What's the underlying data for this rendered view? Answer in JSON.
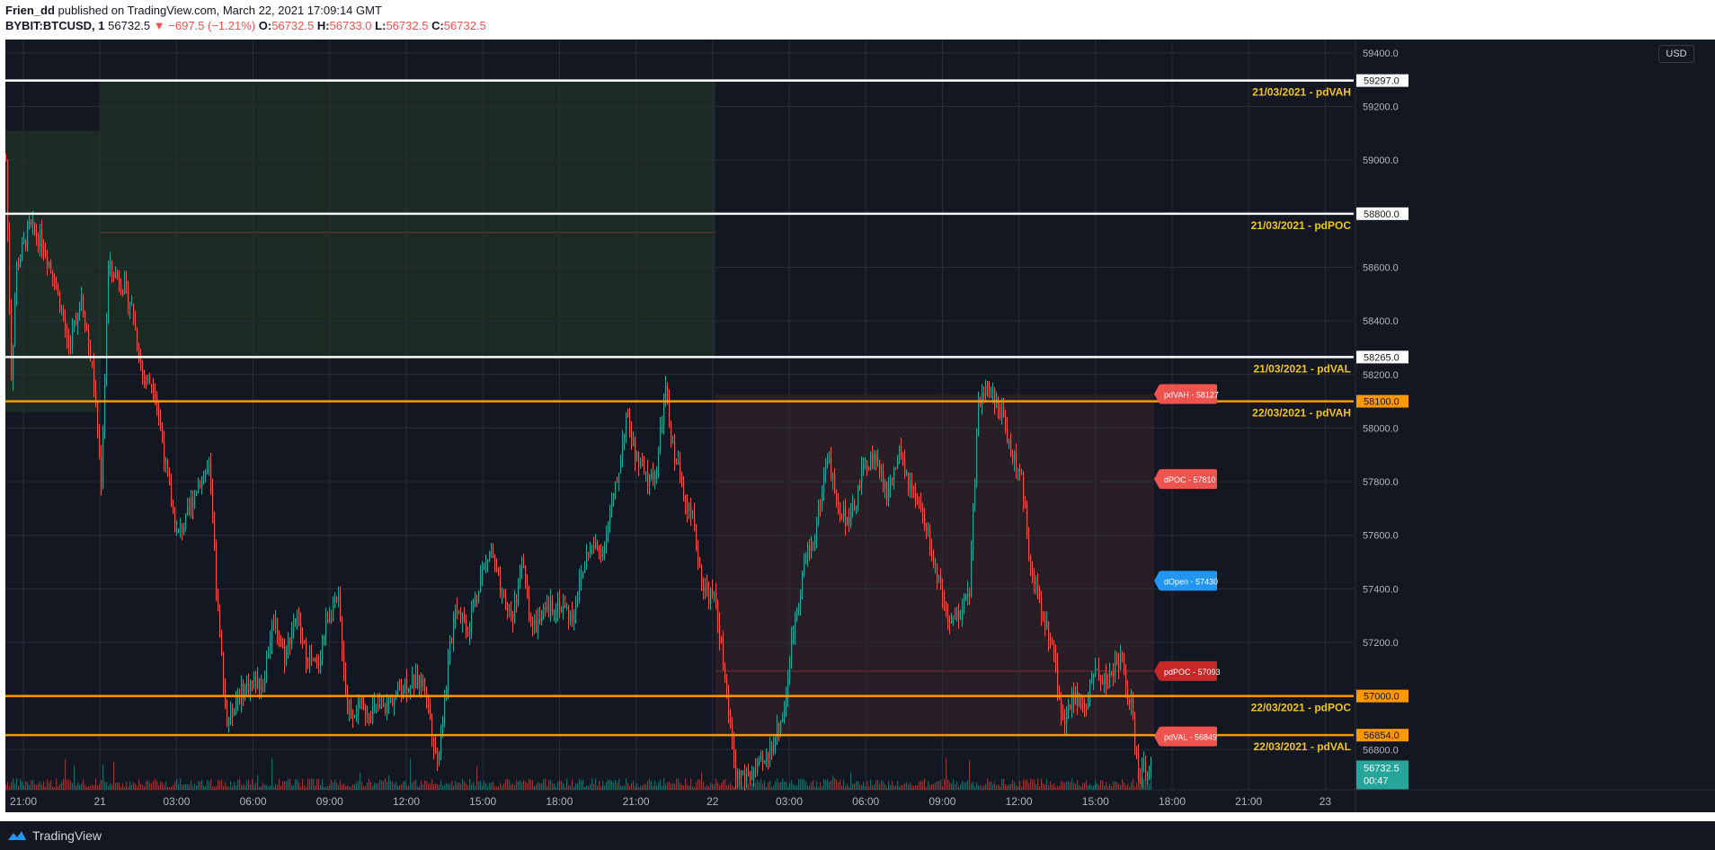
{
  "header": {
    "author": "Frien_dd",
    "published_text": "published on TradingView.com, March 22, 2021 17:09:14 GMT",
    "symbol": "BYBIT:BTCUSD, 1",
    "last": "56732.5",
    "change": "−697.5 (−1.21%)",
    "o_label": "O:",
    "o_value": "56732.5",
    "h_label": "H:",
    "h_value": "56733.0",
    "l_label": "L:",
    "l_value": "56732.5",
    "c_label": "C:",
    "c_value": "56732.5"
  },
  "currency_button": "USD",
  "footer": {
    "brand": "TradingView"
  },
  "colors": {
    "background": "#131722",
    "grid": "#2a2e39",
    "up": "#26a69a",
    "down": "#ef5350",
    "white_line": "#ffffff",
    "orange_line": "#ff9800",
    "label_yellow": "#f0c419",
    "green_box": "#1c2b25",
    "red_box": "#2a1e26",
    "text": "#b2b5be"
  },
  "chart_data": {
    "type": "candlestick",
    "price_axis": {
      "ylim": [
        56650,
        59450
      ],
      "ticks": [
        "59400.0",
        "59200.0",
        "59000.0",
        "58800.0",
        "58600.0",
        "58400.0",
        "58200.0",
        "58000.0",
        "57800.0",
        "57600.0",
        "57400.0",
        "57200.0",
        "57000.0",
        "56800.0"
      ]
    },
    "time_axis": {
      "labels": [
        "21:00",
        "21",
        "03:00",
        "06:00",
        "09:00",
        "12:00",
        "15:00",
        "18:00",
        "21:00",
        "22",
        "03:00",
        "06:00",
        "09:00",
        "12:00",
        "15:00",
        "18:00",
        "21:00",
        "23"
      ]
    },
    "levels": [
      {
        "label": "21/03/2021 - pdVAH",
        "price": "59297.0",
        "value": 59297,
        "style": "white"
      },
      {
        "label": "21/03/2021 - pdPOC",
        "price": "58800.0",
        "value": 58800,
        "style": "white"
      },
      {
        "label": "21/03/2021 - pdVAL",
        "price": "58265.0",
        "value": 58265,
        "style": "white"
      },
      {
        "label": "22/03/2021 - pdVAH",
        "price": "58100.0",
        "value": 58100,
        "style": "orange"
      },
      {
        "label": "22/03/2021 - pdPOC",
        "price": "57000.0",
        "value": 57000,
        "style": "orange"
      },
      {
        "label": "22/03/2021 - pdVAL",
        "price": "56854.0",
        "value": 56854,
        "style": "orange"
      }
    ],
    "tags": [
      {
        "text": "pdVAH -  58127",
        "value": 58127,
        "color": "#ef5350"
      },
      {
        "text": "dPOC -  57810",
        "value": 57810,
        "color": "#ef5350"
      },
      {
        "text": "dOpen -  57430",
        "value": 57430,
        "color": "#2196f3"
      },
      {
        "text": "pdPOC -  57093",
        "value": 57093,
        "color": "#c62828"
      },
      {
        "text": "pdVAL -  56849",
        "value": 56849,
        "color": "#ef5350"
      }
    ],
    "last_price": {
      "price": "56732.5",
      "countdown": "00:47",
      "value": 56732.5
    },
    "path_anchors": [
      [
        0,
        59000
      ],
      [
        6,
        58200
      ],
      [
        12,
        58600
      ],
      [
        26,
        58750
      ],
      [
        40,
        58700
      ],
      [
        55,
        58550
      ],
      [
        70,
        58300
      ],
      [
        84,
        58500
      ],
      [
        97,
        58200
      ],
      [
        106,
        57800
      ],
      [
        114,
        58600
      ],
      [
        128,
        58550
      ],
      [
        140,
        58450
      ],
      [
        152,
        58200
      ],
      [
        166,
        58150
      ],
      [
        180,
        57800
      ],
      [
        190,
        57600
      ],
      [
        200,
        57650
      ],
      [
        214,
        57800
      ],
      [
        226,
        57850
      ],
      [
        236,
        57300
      ],
      [
        246,
        56900
      ],
      [
        258,
        57000
      ],
      [
        272,
        57050
      ],
      [
        286,
        57050
      ],
      [
        298,
        57300
      ],
      [
        310,
        57150
      ],
      [
        322,
        57300
      ],
      [
        334,
        57150
      ],
      [
        346,
        57100
      ],
      [
        358,
        57300
      ],
      [
        370,
        57350
      ],
      [
        380,
        56950
      ],
      [
        396,
        56950
      ],
      [
        420,
        56950
      ],
      [
        444,
        57050
      ],
      [
        466,
        57050
      ],
      [
        480,
        56750
      ],
      [
        490,
        57050
      ],
      [
        500,
        57350
      ],
      [
        514,
        57250
      ],
      [
        528,
        57450
      ],
      [
        540,
        57550
      ],
      [
        552,
        57350
      ],
      [
        564,
        57300
      ],
      [
        574,
        57500
      ],
      [
        586,
        57250
      ],
      [
        598,
        57300
      ],
      [
        612,
        57350
      ],
      [
        630,
        57300
      ],
      [
        648,
        57550
      ],
      [
        664,
        57550
      ],
      [
        680,
        57800
      ],
      [
        690,
        58050
      ],
      [
        700,
        57900
      ],
      [
        714,
        57800
      ],
      [
        724,
        57850
      ],
      [
        734,
        58150
      ],
      [
        740,
        57950
      ],
      [
        752,
        57800
      ],
      [
        764,
        57650
      ],
      [
        776,
        57400
      ],
      [
        790,
        57350
      ],
      [
        800,
        57050
      ],
      [
        812,
        56700
      ],
      [
        826,
        56700
      ],
      [
        844,
        56750
      ],
      [
        856,
        56850
      ],
      [
        866,
        56950
      ],
      [
        876,
        57250
      ],
      [
        888,
        57500
      ],
      [
        900,
        57600
      ],
      [
        914,
        57900
      ],
      [
        926,
        57700
      ],
      [
        940,
        57650
      ],
      [
        954,
        57850
      ],
      [
        966,
        57900
      ],
      [
        980,
        57750
      ],
      [
        994,
        57900
      ],
      [
        1008,
        57750
      ],
      [
        1022,
        57650
      ],
      [
        1036,
        57450
      ],
      [
        1048,
        57250
      ],
      [
        1060,
        57300
      ],
      [
        1072,
        57400
      ],
      [
        1082,
        58100
      ],
      [
        1094,
        58150
      ],
      [
        1108,
        58050
      ],
      [
        1120,
        57900
      ],
      [
        1130,
        57800
      ],
      [
        1140,
        57500
      ],
      [
        1152,
        57300
      ],
      [
        1164,
        57200
      ],
      [
        1176,
        56900
      ],
      [
        1188,
        57000
      ],
      [
        1200,
        56950
      ],
      [
        1212,
        57100
      ],
      [
        1226,
        57050
      ],
      [
        1240,
        57150
      ],
      [
        1252,
        56950
      ],
      [
        1260,
        56700
      ],
      [
        1274,
        56750
      ]
    ],
    "ohlc_last": {
      "o": "56732.5",
      "h": "56733.0",
      "l": "56732.5",
      "c": "56732.5"
    }
  }
}
